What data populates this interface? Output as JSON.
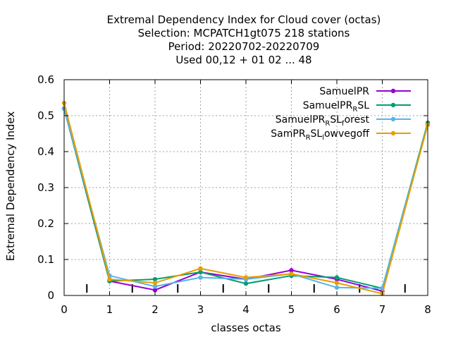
{
  "chart_data": {
    "type": "line",
    "title_lines": [
      "Extremal Dependency Index  for Cloud cover (octas)",
      "Selection: MCPATCH1gt075    218 stations",
      "Period: 20220702-20220709",
      "Used  00,12  + 01 02 ... 48"
    ],
    "xlabel": "classes octas",
    "ylabel": "Extremal Dependency Index",
    "xlim": [
      0,
      8
    ],
    "ylim": [
      0,
      0.6
    ],
    "x_ticks": [
      "0",
      "1",
      "2",
      "3",
      "4",
      "5",
      "6",
      "7",
      "8"
    ],
    "y_ticks": [
      "0",
      "0.1",
      "0.2",
      "0.3",
      "0.4",
      "0.5",
      "0.6"
    ],
    "grid": true,
    "legend_position": "top-right",
    "x": [
      0,
      1,
      2,
      3,
      4,
      5,
      6,
      7,
      8
    ],
    "series": [
      {
        "name_main": "SamuelPR",
        "name_sub": "",
        "name_tail": "",
        "name_sub2": "",
        "name_tail2": "",
        "color": "#9400d3",
        "values": [
          0.52,
          0.04,
          0.015,
          0.065,
          0.045,
          0.07,
          0.045,
          0.012,
          0.475
        ]
      },
      {
        "name_main": "SamuelPR",
        "name_sub": "R",
        "name_tail": "SL",
        "name_sub2": "",
        "name_tail2": "",
        "color": "#009e73",
        "values": [
          0.52,
          0.04,
          0.045,
          0.065,
          0.033,
          0.055,
          0.05,
          0.02,
          0.48
        ]
      },
      {
        "name_main": "SamuelPR",
        "name_sub": "R",
        "name_tail": "SL",
        "name_sub2": "f",
        "name_tail2": "orest",
        "color": "#56b4e9",
        "values": [
          0.52,
          0.055,
          0.025,
          0.05,
          0.045,
          0.06,
          0.022,
          0.02,
          0.475
        ]
      },
      {
        "name_main": "SamPR",
        "name_sub": "R",
        "name_tail": "SL",
        "name_sub2": "l",
        "name_tail2": "owvegoff",
        "color": "#e69f00",
        "values": [
          0.535,
          0.045,
          0.035,
          0.075,
          0.05,
          0.06,
          0.035,
          0.005,
          0.475
        ]
      }
    ]
  }
}
